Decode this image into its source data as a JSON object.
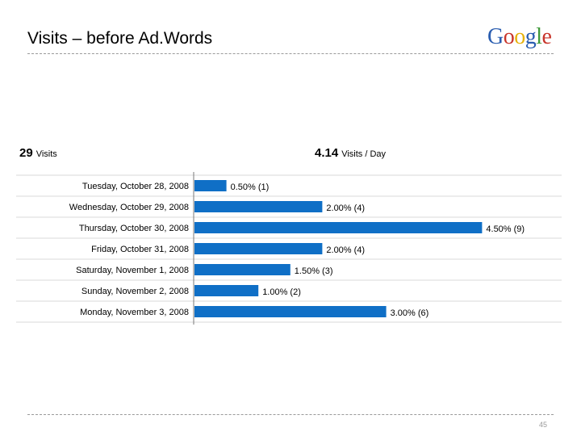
{
  "slide": {
    "title": "Visits – before Ad.Words",
    "page_number": "45"
  },
  "logo": {
    "text": "Google",
    "letters": [
      {
        "ch": "G",
        "color": "#2a5db0"
      },
      {
        "ch": "o",
        "color": "#c8352b"
      },
      {
        "ch": "o",
        "color": "#e7b20c"
      },
      {
        "ch": "g",
        "color": "#2a5db0"
      },
      {
        "ch": "l",
        "color": "#3f9a3a"
      },
      {
        "ch": "e",
        "color": "#c8352b"
      }
    ]
  },
  "summary": {
    "visits_value": "29",
    "visits_label": "Visits",
    "per_day_value": "4.14",
    "per_day_label": "Visits / Day"
  },
  "colors": {
    "bar": "#0f6fc6",
    "grid": "#d9d9d9",
    "axis": "#7a7a7a"
  },
  "chart_data": {
    "type": "bar",
    "orientation": "horizontal",
    "categories": [
      "Tuesday, October 28, 2008",
      "Wednesday, October 29, 2008",
      "Thursday, October 30, 2008",
      "Friday, October 31, 2008",
      "Saturday, November 1, 2008",
      "Sunday, November 2, 2008",
      "Monday, November 3, 2008"
    ],
    "values": [
      1,
      4,
      9,
      4,
      3,
      2,
      6
    ],
    "labels": [
      "0.50% (1)",
      "2.00% (4)",
      "4.50% (9)",
      "2.00% (4)",
      "1.50% (3)",
      "1.00% (2)",
      "3.00% (6)"
    ],
    "xlim": [
      0,
      9
    ],
    "grid": true,
    "legend": "none"
  }
}
